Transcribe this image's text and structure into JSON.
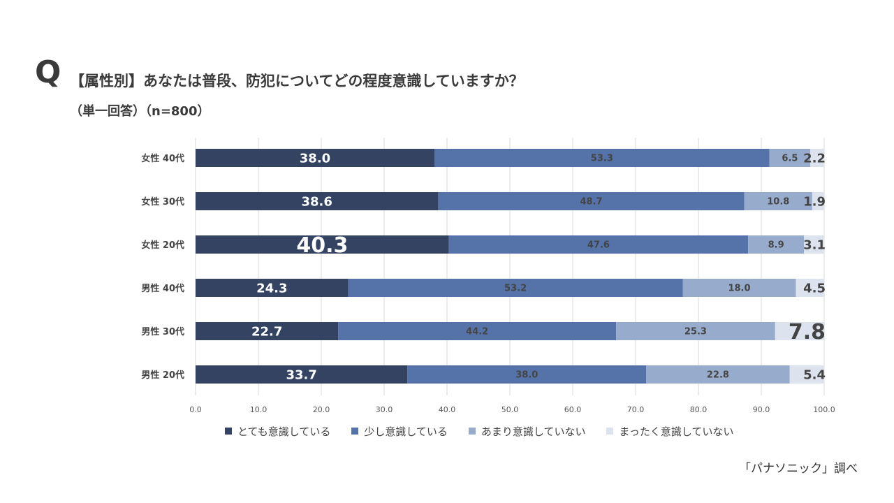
{
  "question_mark": "Q",
  "title": "【属性別】あなたは普段、防犯についてどの程度意識していますか？",
  "subtitle": "（単一回答）（n=800）",
  "source": "「パナソニック」調べ",
  "colors": {
    "s1": "#344362",
    "s2": "#5573a8",
    "s3": "#97abcc",
    "s4": "#dde3ee",
    "label_light": "#ffffff",
    "label_dark": "#444444",
    "grid": "#d9d9d9"
  },
  "chart_data": {
    "type": "bar",
    "orientation": "horizontal",
    "stacked": true,
    "title": "【属性別】あなたは普段、防犯についてどの程度意識していますか？",
    "xlim": [
      0,
      100
    ],
    "xticks": [
      "0.0",
      "10.0",
      "20.0",
      "30.0",
      "40.0",
      "50.0",
      "60.0",
      "70.0",
      "80.0",
      "90.0",
      "100.0"
    ],
    "categories": [
      "女性 40代",
      "女性 30代",
      "女性 20代",
      "男性 40代",
      "男性 30代",
      "男性 20代"
    ],
    "series": [
      {
        "name": "とても意識している",
        "values": [
          38.0,
          38.6,
          40.3,
          24.3,
          22.7,
          33.7
        ],
        "labels": [
          "38.0",
          "38.6",
          "40.3",
          "24.3",
          "22.7",
          "33.7"
        ]
      },
      {
        "name": "少し意識している",
        "values": [
          53.3,
          48.7,
          47.6,
          53.2,
          44.2,
          38.0
        ],
        "labels": [
          "53.3",
          "48.7",
          "47.6",
          "53.2",
          "44.2",
          "38.0"
        ]
      },
      {
        "name": "あまり意識していない",
        "values": [
          6.5,
          10.8,
          8.9,
          18.0,
          25.3,
          22.8
        ],
        "labels": [
          "6.5",
          "10.8",
          "8.9",
          "18.0",
          "25.3",
          "22.8"
        ]
      },
      {
        "name": "まったく意識していない",
        "values": [
          2.2,
          1.9,
          3.1,
          4.5,
          7.8,
          5.4
        ],
        "labels": [
          "2.2",
          "1.9",
          "3.1",
          "4.5",
          "7.8",
          "5.4"
        ]
      }
    ],
    "legend_position": "bottom",
    "grid": true
  }
}
